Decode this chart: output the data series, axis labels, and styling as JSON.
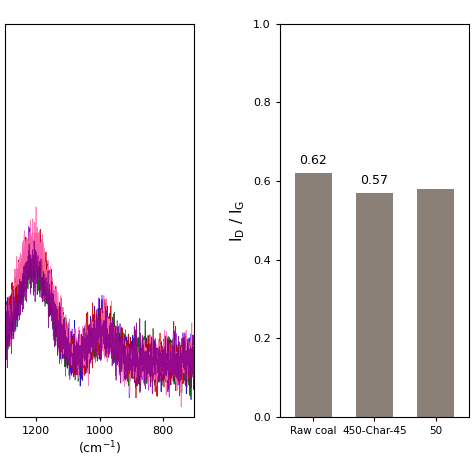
{
  "bar_categories": [
    "Raw coal",
    "450-Char-45",
    "50"
  ],
  "bar_values": [
    0.62,
    0.57,
    0.58
  ],
  "bar_color": "#8B8078",
  "bar_labels": [
    "0.62",
    "0.57",
    ""
  ],
  "ylim_bar": [
    0.0,
    1.0
  ],
  "yticks_bar": [
    0.0,
    0.2,
    0.4,
    0.6,
    0.8,
    1.0
  ],
  "xlabel_spectra": "(cm$^{-1}$)",
  "xticks_spectra": [
    1200,
    1000,
    800
  ],
  "xlim_spectra_min": 700,
  "xlim_spectra_max": 1300,
  "spectra_colors": [
    "#9B30FF",
    "#0000CD",
    "#006400",
    "#CC0000",
    "#FF69B4",
    "#8B008B"
  ],
  "background_color": "#FFFFFF",
  "figure_facecolor": "#FFFFFF",
  "spectra_ylim_max": 0.18,
  "spectra_ylim_min": -0.02
}
